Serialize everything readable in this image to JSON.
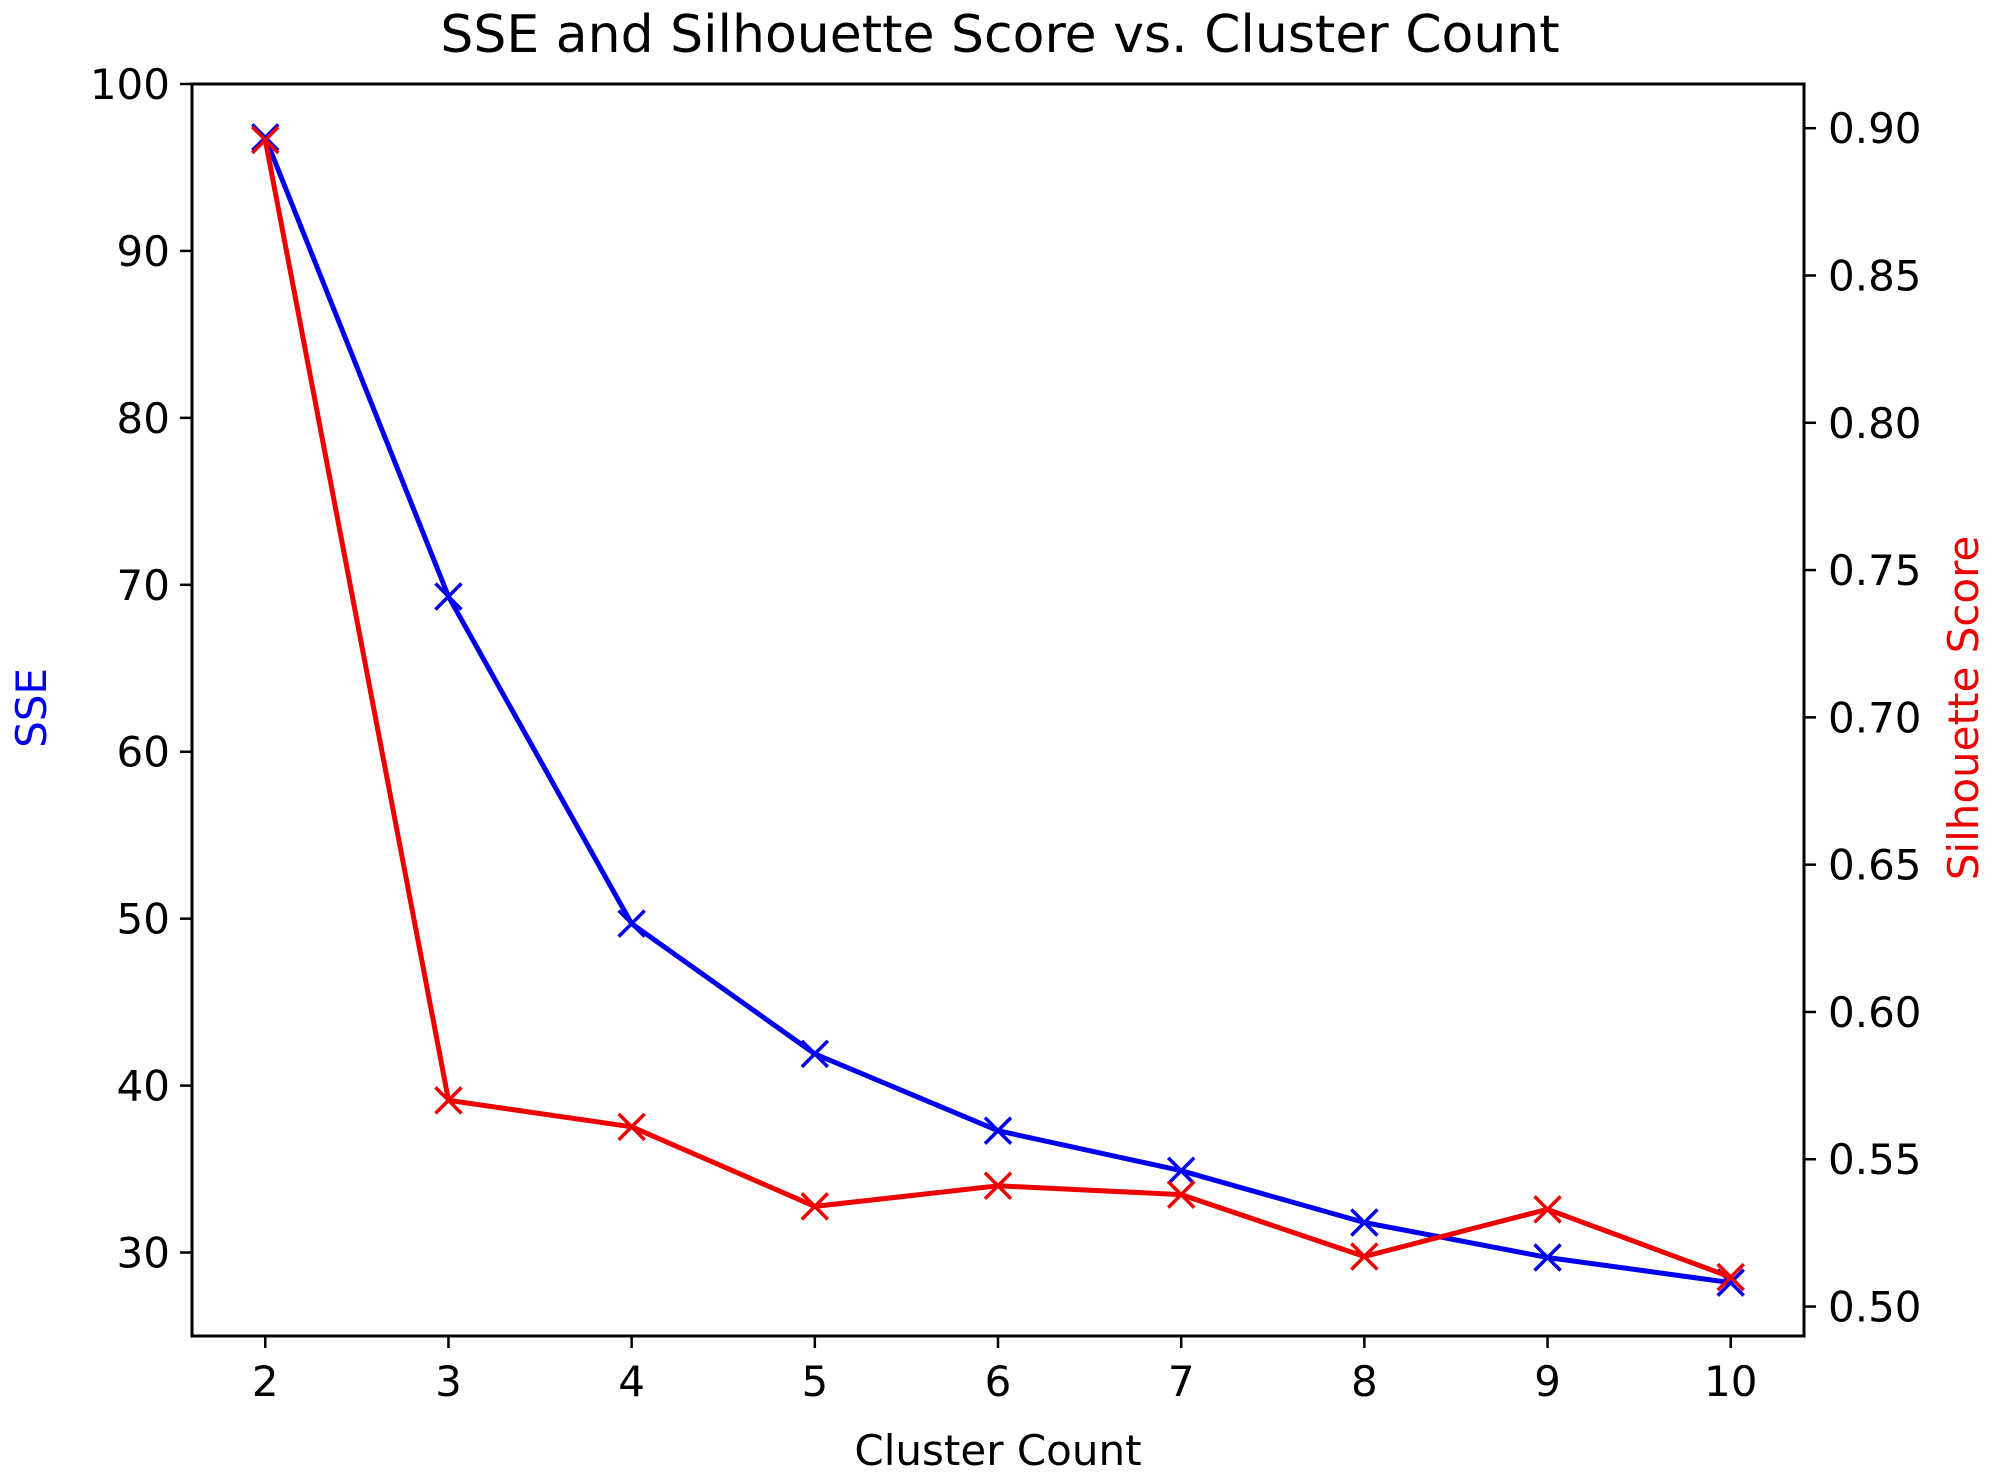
{
  "chart_data": {
    "type": "line",
    "title": "SSE and Silhouette Score vs. Cluster Count",
    "xlabel": "Cluster Count",
    "ylabel_left": "SSE",
    "ylabel_right": "Silhouette Score",
    "x": [
      2,
      3,
      4,
      5,
      6,
      7,
      8,
      9,
      10
    ],
    "x_ticks": [
      "2",
      "3",
      "4",
      "5",
      "6",
      "7",
      "8",
      "9",
      "10"
    ],
    "xlim": [
      1.6,
      10.4
    ],
    "ylim_left": [
      25,
      100
    ],
    "ylim_right": [
      0.49,
      0.915
    ],
    "y_ticks_left": [
      "30",
      "40",
      "50",
      "60",
      "70",
      "80",
      "90",
      "100"
    ],
    "y_ticks_right": [
      "0.50",
      "0.55",
      "0.60",
      "0.65",
      "0.70",
      "0.75",
      "0.80",
      "0.85",
      "0.90"
    ],
    "grid": false,
    "series": [
      {
        "axis": "left",
        "color": "#0000ee",
        "marker": "x",
        "values": [
          96.8,
          69.3,
          49.7,
          41.9,
          37.3,
          34.9,
          31.8,
          29.7,
          28.2
        ]
      },
      {
        "axis": "right",
        "color": "#ee0000",
        "marker": "x",
        "values": [
          0.896,
          0.57,
          0.561,
          0.534,
          0.541,
          0.538,
          0.517,
          0.533,
          0.51
        ]
      }
    ]
  }
}
